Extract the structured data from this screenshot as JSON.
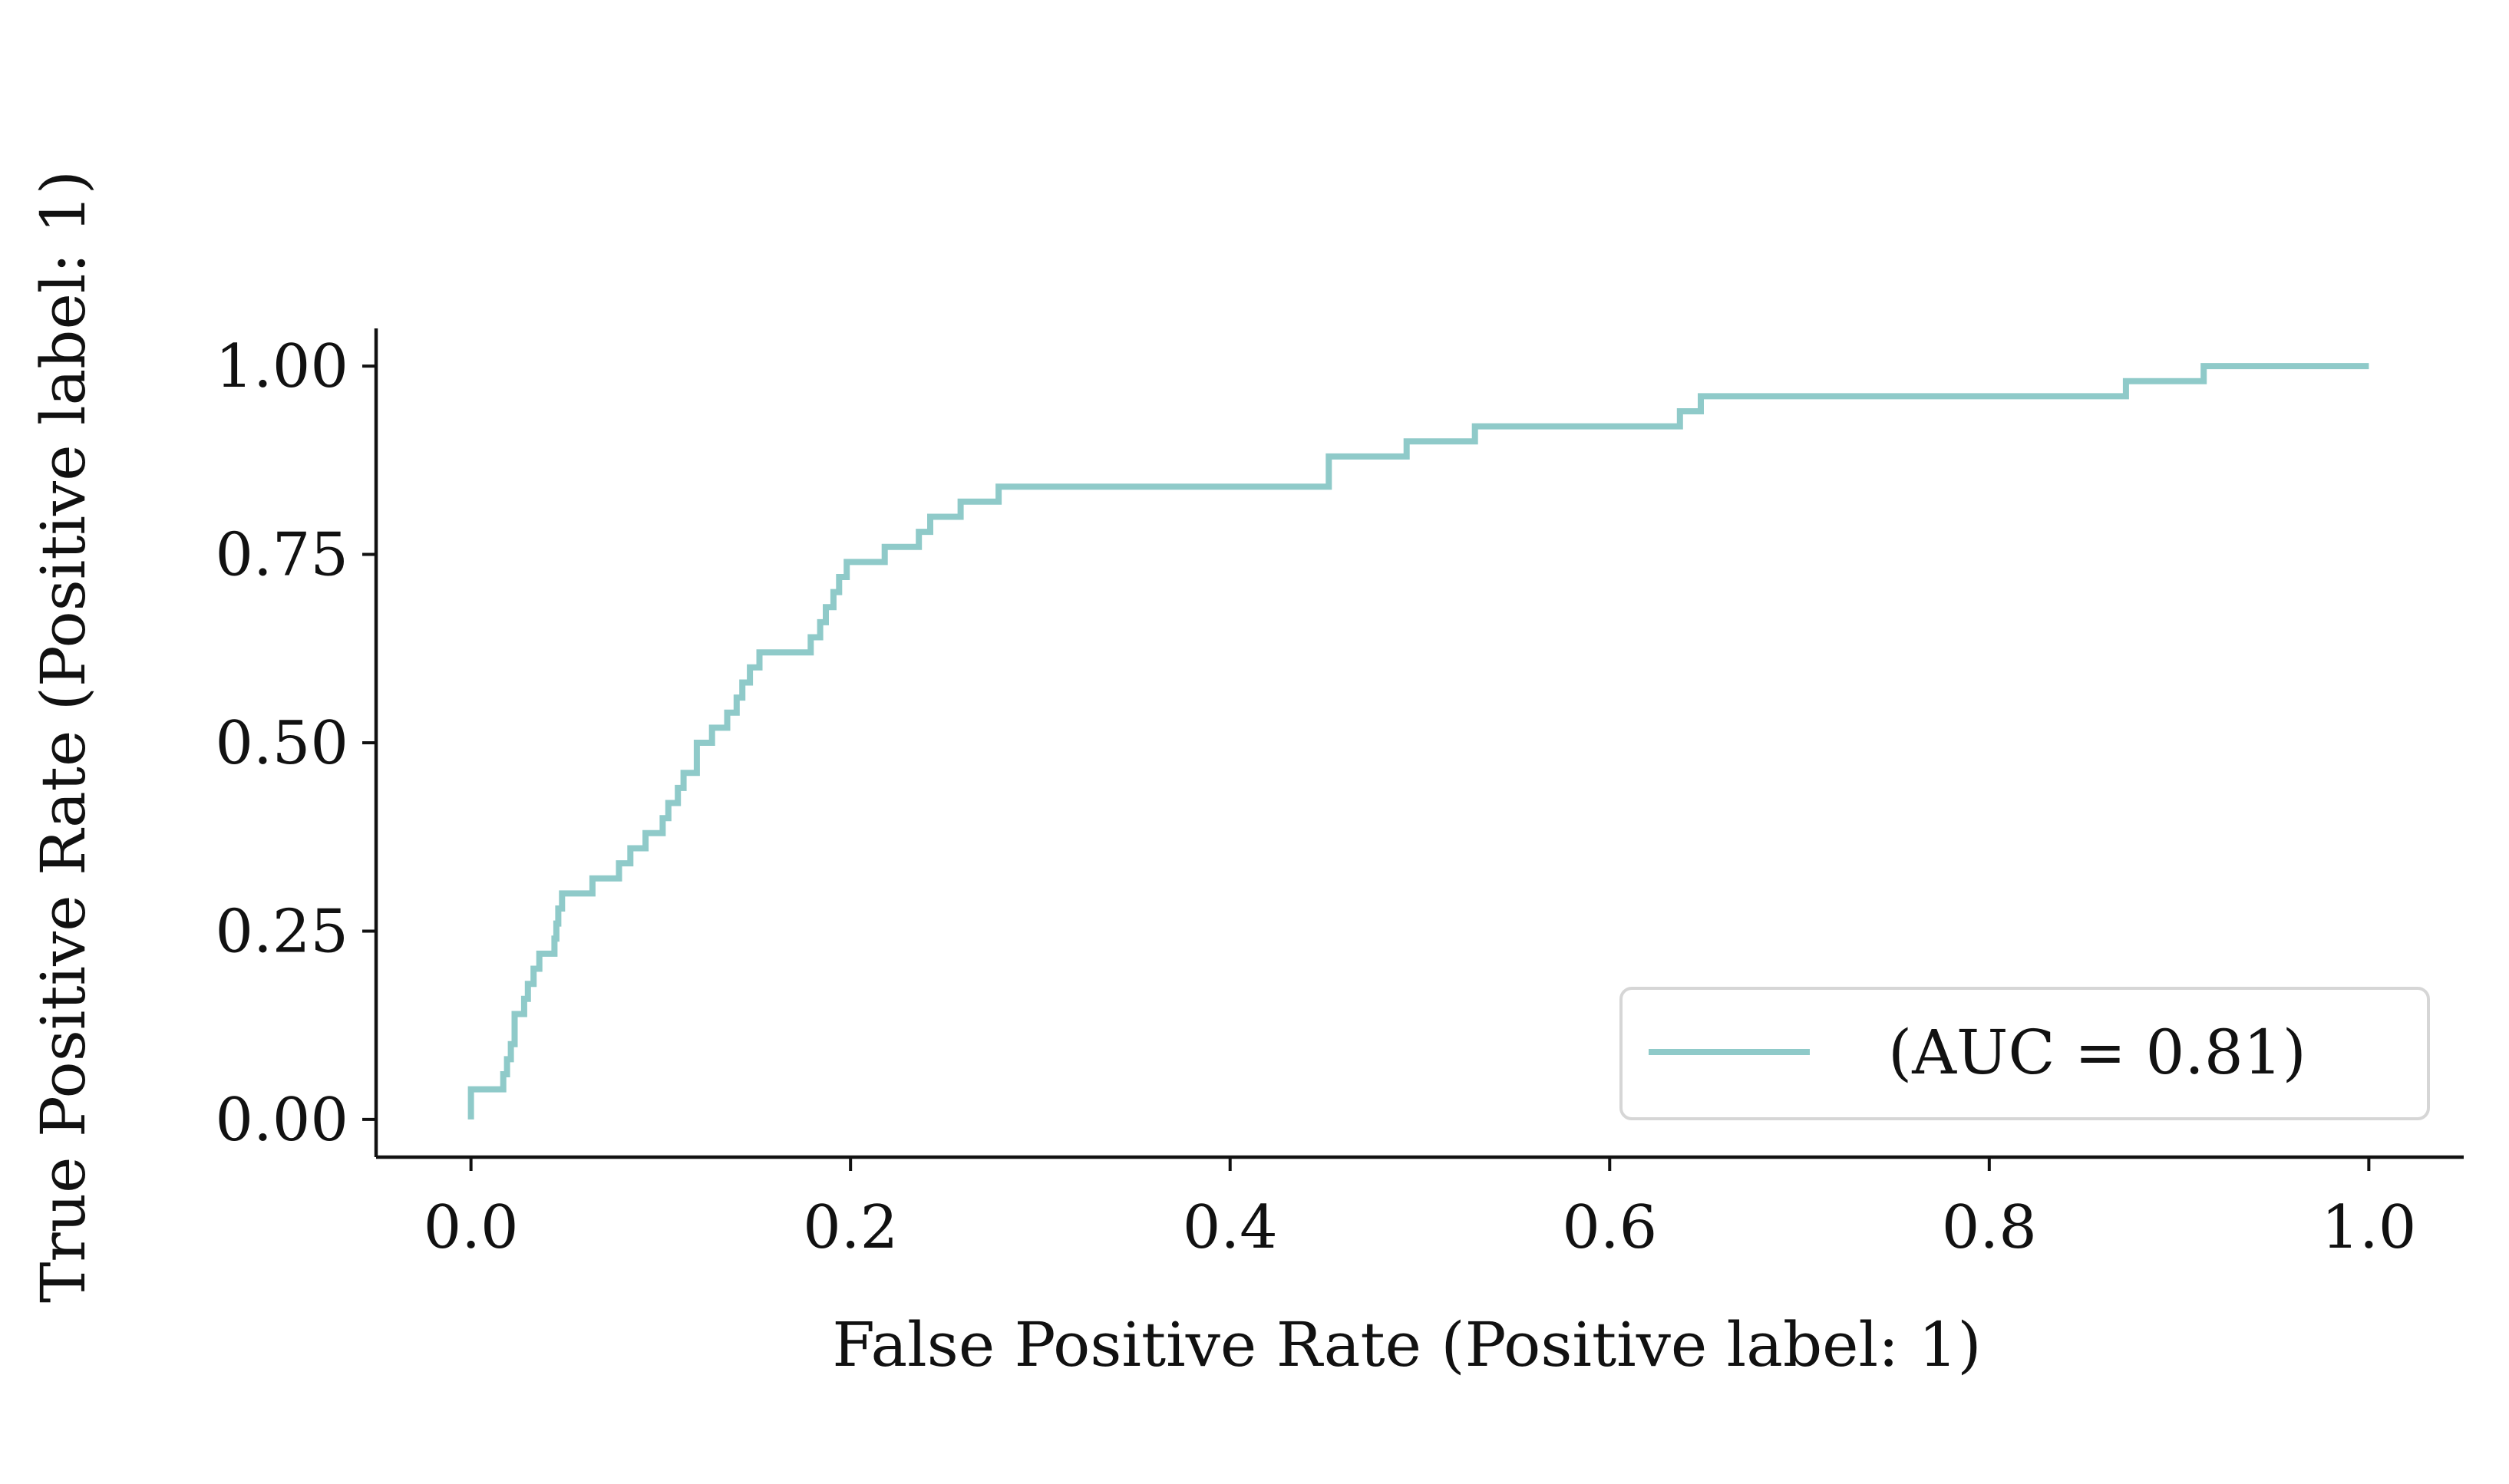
{
  "chart_data": {
    "type": "line",
    "title": "",
    "xlabel": "False Positive Rate (Positive label: 1)",
    "ylabel": "True Positive Rate (Positive label: 1)",
    "xlim": [
      -0.05,
      1.05
    ],
    "ylim": [
      -0.05,
      1.05
    ],
    "xticks": [
      0.0,
      0.2,
      0.4,
      0.6,
      0.8,
      1.0
    ],
    "xtick_labels": [
      "0.0",
      "0.2",
      "0.4",
      "0.6",
      "0.8",
      "1.0"
    ],
    "yticks": [
      0.0,
      0.25,
      0.5,
      0.75,
      1.0
    ],
    "ytick_labels": [
      "0.00",
      "0.25",
      "0.50",
      "0.75",
      "1.00"
    ],
    "grid": false,
    "legend": {
      "position": "lower-right",
      "label": "(AUC = 0.81)"
    },
    "series": [
      {
        "color": "#8fcac9",
        "drawstyle": "steps-post",
        "points": [
          [
            0.0,
            0.0
          ],
          [
            0.0,
            0.04
          ],
          [
            0.017,
            0.04
          ],
          [
            0.017,
            0.06
          ],
          [
            0.019,
            0.08
          ],
          [
            0.021,
            0.1
          ],
          [
            0.023,
            0.14
          ],
          [
            0.028,
            0.14
          ],
          [
            0.028,
            0.16
          ],
          [
            0.03,
            0.18
          ],
          [
            0.033,
            0.2
          ],
          [
            0.036,
            0.22
          ],
          [
            0.044,
            0.22
          ],
          [
            0.044,
            0.24
          ],
          [
            0.045,
            0.26
          ],
          [
            0.046,
            0.28
          ],
          [
            0.048,
            0.3
          ],
          [
            0.064,
            0.3
          ],
          [
            0.064,
            0.32
          ],
          [
            0.078,
            0.32
          ],
          [
            0.078,
            0.34
          ],
          [
            0.084,
            0.36
          ],
          [
            0.092,
            0.36
          ],
          [
            0.092,
            0.38
          ],
          [
            0.101,
            0.38
          ],
          [
            0.101,
            0.4
          ],
          [
            0.104,
            0.42
          ],
          [
            0.109,
            0.44
          ],
          [
            0.112,
            0.46
          ],
          [
            0.119,
            0.46
          ],
          [
            0.119,
            0.5
          ],
          [
            0.127,
            0.5
          ],
          [
            0.127,
            0.52
          ],
          [
            0.135,
            0.52
          ],
          [
            0.135,
            0.54
          ],
          [
            0.14,
            0.56
          ],
          [
            0.143,
            0.58
          ],
          [
            0.147,
            0.6
          ],
          [
            0.152,
            0.62
          ],
          [
            0.179,
            0.62
          ],
          [
            0.179,
            0.64
          ],
          [
            0.184,
            0.66
          ],
          [
            0.187,
            0.68
          ],
          [
            0.191,
            0.7
          ],
          [
            0.194,
            0.72
          ],
          [
            0.198,
            0.74
          ],
          [
            0.218,
            0.74
          ],
          [
            0.218,
            0.76
          ],
          [
            0.236,
            0.76
          ],
          [
            0.236,
            0.78
          ],
          [
            0.242,
            0.8
          ],
          [
            0.258,
            0.8
          ],
          [
            0.258,
            0.82
          ],
          [
            0.278,
            0.82
          ],
          [
            0.278,
            0.84
          ],
          [
            0.452,
            0.84
          ],
          [
            0.452,
            0.88
          ],
          [
            0.493,
            0.88
          ],
          [
            0.493,
            0.9
          ],
          [
            0.529,
            0.9
          ],
          [
            0.529,
            0.92
          ],
          [
            0.637,
            0.92
          ],
          [
            0.637,
            0.94
          ],
          [
            0.648,
            0.94
          ],
          [
            0.648,
            0.96
          ],
          [
            0.872,
            0.96
          ],
          [
            0.872,
            0.98
          ],
          [
            0.913,
            0.98
          ],
          [
            0.913,
            1.0
          ],
          [
            1.0,
            1.0
          ]
        ]
      }
    ]
  }
}
